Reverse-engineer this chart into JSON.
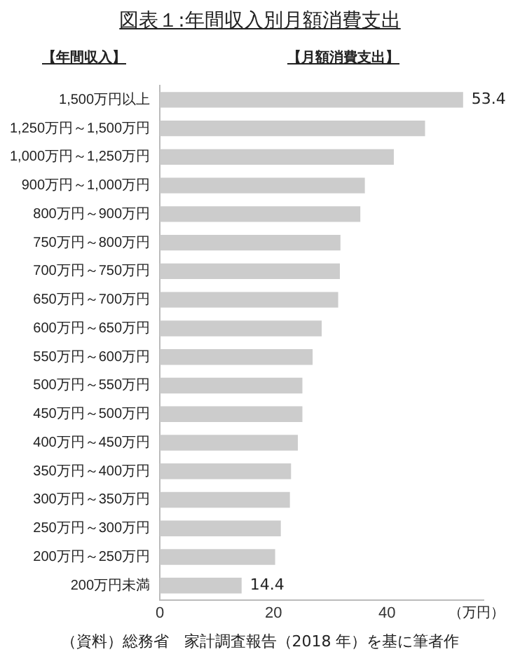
{
  "chart_data": {
    "type": "bar",
    "orientation": "horizontal",
    "title": "図表１:年間収入別月額消費支出",
    "ylabel": "【年間収入】",
    "xlabel": "【月額消費支出】",
    "categories": [
      "1,500万円以上",
      "1,250万円～1,500万円",
      "1,000万円～1,250万円",
      "900万円～1,000万円",
      "800万円～900万円",
      "750万円～800万円",
      "700万円～750万円",
      "650万円～700万円",
      "600万円～650万円",
      "550万円～600万円",
      "500万円～550万円",
      "450万円～500万円",
      "400万円～450万円",
      "350万円～400万円",
      "300万円～350万円",
      "250万円～300万円",
      "200万円～250万円",
      "200万円未満"
    ],
    "values": [
      53.4,
      46.7,
      41.2,
      36.1,
      35.3,
      31.8,
      31.7,
      31.4,
      28.5,
      26.9,
      25.1,
      25.1,
      24.3,
      23.1,
      22.9,
      21.3,
      20.3,
      14.4
    ],
    "value_labels": [
      "53.4",
      null,
      null,
      null,
      null,
      null,
      null,
      null,
      null,
      null,
      null,
      null,
      null,
      null,
      null,
      null,
      null,
      "14.4"
    ],
    "color": "#cccccc",
    "xlim": [
      0,
      57
    ],
    "xticks": [
      0,
      20,
      40
    ],
    "grid": false,
    "legend": false,
    "annotations": [
      "（万円）",
      "（資料）総務省　家計調査報告（2018 年）を基に筆者作"
    ]
  }
}
